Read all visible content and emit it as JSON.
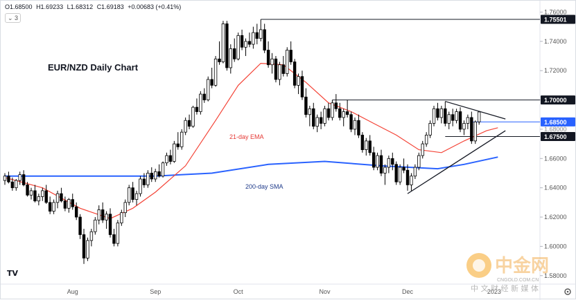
{
  "ohlc": {
    "open": "O1.68500",
    "high": "H1.69233",
    "low": "L1.68312",
    "close": "C1.69183",
    "change": "+0.00683 (+0.41%)"
  },
  "indicator_toggle": "⌄ 3",
  "logo_text": "TV",
  "watermark": {
    "brand": "中金网",
    "domain": "CNGOLD.COM.CN",
    "tagline": "中 文 财 经 新 媒 体"
  },
  "settings_icon": "gear-icon",
  "chart_data": {
    "type": "candlestick",
    "title": "EUR/NZD Daily Chart",
    "y_ticks": [
      "1.76000",
      "1.74000",
      "1.72000",
      "1.70000",
      "1.68000",
      "1.66000",
      "1.64000",
      "1.62000",
      "1.60000",
      "1.58000"
    ],
    "ylim": [
      1.578,
      1.764
    ],
    "x_labels": [
      {
        "label": "Aug",
        "index": 18
      },
      {
        "label": "Sep",
        "index": 40
      },
      {
        "label": "Oct",
        "index": 62
      },
      {
        "label": "Nov",
        "index": 85
      },
      {
        "label": "Dec",
        "index": 107
      },
      {
        "label": "2023",
        "index": 130
      }
    ],
    "price_tags": [
      {
        "label": "1.75501",
        "value": 1.75501,
        "style": "dark"
      },
      {
        "label": "1.70000",
        "value": 1.7,
        "style": "dark"
      },
      {
        "label": "1.68500",
        "value": 1.685,
        "style": "blue"
      },
      {
        "label": "1.68000",
        "value": 1.68,
        "style": "faint"
      },
      {
        "label": "1.67500",
        "value": 1.675,
        "style": "dark"
      }
    ],
    "annotations": [
      {
        "text": "21-day EMA",
        "color": "#e53935"
      },
      {
        "text": "200-day SMA",
        "color": "#1e3a8a"
      }
    ],
    "colors": {
      "up": "#ffffff",
      "down": "#000000",
      "ema": "#f44336",
      "sma": "#2962ff",
      "tag_blue": "#2962ff",
      "tag_dark": "#131722"
    },
    "candles": [
      [
        1.645,
        1.65,
        1.642,
        1.648
      ],
      [
        1.648,
        1.651,
        1.643,
        1.644
      ],
      [
        1.644,
        1.647,
        1.638,
        1.64
      ],
      [
        1.64,
        1.646,
        1.638,
        1.645
      ],
      [
        1.645,
        1.651,
        1.642,
        1.649
      ],
      [
        1.649,
        1.652,
        1.641,
        1.642
      ],
      [
        1.642,
        1.644,
        1.634,
        1.635
      ],
      [
        1.635,
        1.64,
        1.632,
        1.638
      ],
      [
        1.638,
        1.642,
        1.63,
        1.631
      ],
      [
        1.631,
        1.636,
        1.628,
        1.634
      ],
      [
        1.634,
        1.64,
        1.631,
        1.638
      ],
      [
        1.638,
        1.642,
        1.629,
        1.63
      ],
      [
        1.63,
        1.634,
        1.622,
        1.624
      ],
      [
        1.624,
        1.632,
        1.622,
        1.63
      ],
      [
        1.63,
        1.638,
        1.626,
        1.636
      ],
      [
        1.636,
        1.64,
        1.63,
        1.631
      ],
      [
        1.631,
        1.634,
        1.624,
        1.626
      ],
      [
        1.626,
        1.633,
        1.623,
        1.632
      ],
      [
        1.632,
        1.636,
        1.625,
        1.627
      ],
      [
        1.627,
        1.63,
        1.618,
        1.62
      ],
      [
        1.62,
        1.622,
        1.605,
        1.608
      ],
      [
        1.608,
        1.612,
        1.588,
        1.592
      ],
      [
        1.592,
        1.606,
        1.59,
        1.604
      ],
      [
        1.604,
        1.612,
        1.6,
        1.61
      ],
      [
        1.61,
        1.62,
        1.608,
        1.618
      ],
      [
        1.618,
        1.628,
        1.615,
        1.625
      ],
      [
        1.625,
        1.63,
        1.616,
        1.618
      ],
      [
        1.618,
        1.624,
        1.612,
        1.622
      ],
      [
        1.622,
        1.626,
        1.606,
        1.608
      ],
      [
        1.608,
        1.612,
        1.6,
        1.602
      ],
      [
        1.602,
        1.618,
        1.6,
        1.616
      ],
      [
        1.616,
        1.625,
        1.614,
        1.623
      ],
      [
        1.623,
        1.632,
        1.62,
        1.63
      ],
      [
        1.63,
        1.642,
        1.628,
        1.64
      ],
      [
        1.64,
        1.644,
        1.63,
        1.632
      ],
      [
        1.632,
        1.638,
        1.628,
        1.636
      ],
      [
        1.636,
        1.648,
        1.634,
        1.646
      ],
      [
        1.646,
        1.65,
        1.64,
        1.642
      ],
      [
        1.642,
        1.652,
        1.64,
        1.65
      ],
      [
        1.65,
        1.654,
        1.644,
        1.646
      ],
      [
        1.646,
        1.653,
        1.644,
        1.651
      ],
      [
        1.651,
        1.656,
        1.647,
        1.648
      ],
      [
        1.648,
        1.658,
        1.647,
        1.657
      ],
      [
        1.657,
        1.664,
        1.655,
        1.662
      ],
      [
        1.662,
        1.666,
        1.656,
        1.658
      ],
      [
        1.658,
        1.672,
        1.657,
        1.67
      ],
      [
        1.67,
        1.678,
        1.666,
        1.668
      ],
      [
        1.668,
        1.68,
        1.666,
        1.678
      ],
      [
        1.678,
        1.688,
        1.676,
        1.686
      ],
      [
        1.686,
        1.69,
        1.68,
        1.682
      ],
      [
        1.682,
        1.696,
        1.681,
        1.695
      ],
      [
        1.695,
        1.701,
        1.69,
        1.692
      ],
      [
        1.692,
        1.706,
        1.69,
        1.704
      ],
      [
        1.704,
        1.708,
        1.698,
        1.7
      ],
      [
        1.7,
        1.716,
        1.699,
        1.714
      ],
      [
        1.714,
        1.722,
        1.708,
        1.71
      ],
      [
        1.71,
        1.73,
        1.709,
        1.728
      ],
      [
        1.728,
        1.74,
        1.724,
        1.726
      ],
      [
        1.726,
        1.754,
        1.725,
        1.752
      ],
      [
        1.752,
        1.754,
        1.72,
        1.722
      ],
      [
        1.722,
        1.738,
        1.718,
        1.735
      ],
      [
        1.735,
        1.742,
        1.726,
        1.728
      ],
      [
        1.728,
        1.746,
        1.727,
        1.744
      ],
      [
        1.744,
        1.748,
        1.734,
        1.736
      ],
      [
        1.736,
        1.742,
        1.73,
        1.74
      ],
      [
        1.74,
        1.746,
        1.736,
        1.738
      ],
      [
        1.738,
        1.75,
        1.735,
        1.746
      ],
      [
        1.746,
        1.752,
        1.738,
        1.742
      ],
      [
        1.742,
        1.755,
        1.74,
        1.748
      ],
      [
        1.748,
        1.752,
        1.732,
        1.734
      ],
      [
        1.734,
        1.74,
        1.722,
        1.724
      ],
      [
        1.724,
        1.732,
        1.718,
        1.728
      ],
      [
        1.728,
        1.73,
        1.712,
        1.714
      ],
      [
        1.714,
        1.726,
        1.71,
        1.724
      ],
      [
        1.724,
        1.73,
        1.716,
        1.718
      ],
      [
        1.718,
        1.736,
        1.716,
        1.734
      ],
      [
        1.734,
        1.74,
        1.724,
        1.726
      ],
      [
        1.726,
        1.728,
        1.708,
        1.71
      ],
      [
        1.71,
        1.718,
        1.704,
        1.716
      ],
      [
        1.716,
        1.72,
        1.7,
        1.702
      ],
      [
        1.702,
        1.708,
        1.688,
        1.69
      ],
      [
        1.69,
        1.696,
        1.682,
        1.694
      ],
      [
        1.694,
        1.698,
        1.68,
        1.682
      ],
      [
        1.682,
        1.69,
        1.678,
        1.688
      ],
      [
        1.688,
        1.692,
        1.68,
        1.684
      ],
      [
        1.684,
        1.696,
        1.682,
        1.694
      ],
      [
        1.694,
        1.698,
        1.686,
        1.688
      ],
      [
        1.688,
        1.7,
        1.686,
        1.698
      ],
      [
        1.698,
        1.704,
        1.692,
        1.694
      ],
      [
        1.694,
        1.698,
        1.686,
        1.688
      ],
      [
        1.688,
        1.694,
        1.682,
        1.692
      ],
      [
        1.692,
        1.7,
        1.688,
        1.69
      ],
      [
        1.69,
        1.692,
        1.678,
        1.68
      ],
      [
        1.68,
        1.688,
        1.676,
        1.686
      ],
      [
        1.686,
        1.69,
        1.674,
        1.676
      ],
      [
        1.676,
        1.678,
        1.664,
        1.666
      ],
      [
        1.666,
        1.674,
        1.662,
        1.672
      ],
      [
        1.672,
        1.676,
        1.662,
        1.664
      ],
      [
        1.664,
        1.668,
        1.652,
        1.654
      ],
      [
        1.654,
        1.664,
        1.652,
        1.662
      ],
      [
        1.662,
        1.666,
        1.648,
        1.65
      ],
      [
        1.65,
        1.656,
        1.642,
        1.654
      ],
      [
        1.654,
        1.662,
        1.65,
        1.66
      ],
      [
        1.66,
        1.664,
        1.652,
        1.656
      ],
      [
        1.656,
        1.658,
        1.642,
        1.644
      ],
      [
        1.644,
        1.656,
        1.642,
        1.654
      ],
      [
        1.654,
        1.66,
        1.65,
        1.652
      ],
      [
        1.652,
        1.656,
        1.638,
        1.642
      ],
      [
        1.642,
        1.65,
        1.638,
        1.648
      ],
      [
        1.648,
        1.656,
        1.646,
        1.654
      ],
      [
        1.654,
        1.664,
        1.652,
        1.662
      ],
      [
        1.662,
        1.672,
        1.66,
        1.67
      ],
      [
        1.67,
        1.678,
        1.668,
        1.676
      ],
      [
        1.676,
        1.686,
        1.674,
        1.684
      ],
      [
        1.684,
        1.696,
        1.682,
        1.694
      ],
      [
        1.694,
        1.698,
        1.686,
        1.688
      ],
      [
        1.688,
        1.696,
        1.684,
        1.694
      ],
      [
        1.694,
        1.699,
        1.682,
        1.684
      ],
      [
        1.684,
        1.692,
        1.68,
        1.69
      ],
      [
        1.69,
        1.694,
        1.682,
        1.686
      ],
      [
        1.686,
        1.694,
        1.684,
        1.692
      ],
      [
        1.692,
        1.695,
        1.678,
        1.68
      ],
      [
        1.68,
        1.686,
        1.676,
        1.684
      ],
      [
        1.684,
        1.69,
        1.68,
        1.688
      ],
      [
        1.688,
        1.692,
        1.67,
        1.672
      ],
      [
        1.672,
        1.686,
        1.67,
        1.685
      ],
      [
        1.685,
        1.6923,
        1.6831,
        1.6918
      ]
    ],
    "ema21_anchors": [
      [
        0,
        1.647
      ],
      [
        10,
        1.64
      ],
      [
        20,
        1.626
      ],
      [
        28,
        1.619
      ],
      [
        34,
        1.626
      ],
      [
        40,
        1.637
      ],
      [
        48,
        1.655
      ],
      [
        56,
        1.686
      ],
      [
        62,
        1.71
      ],
      [
        68,
        1.725
      ],
      [
        74,
        1.724
      ],
      [
        80,
        1.712
      ],
      [
        86,
        1.698
      ],
      [
        92,
        1.692
      ],
      [
        98,
        1.684
      ],
      [
        104,
        1.676
      ],
      [
        110,
        1.666
      ],
      [
        116,
        1.664
      ],
      [
        122,
        1.672
      ],
      [
        128,
        1.679
      ],
      [
        131,
        1.681
      ]
    ],
    "sma200_anchors": [
      [
        0,
        1.648
      ],
      [
        20,
        1.648
      ],
      [
        40,
        1.648
      ],
      [
        55,
        1.65
      ],
      [
        70,
        1.656
      ],
      [
        85,
        1.658
      ],
      [
        100,
        1.655
      ],
      [
        115,
        1.653
      ],
      [
        122,
        1.656
      ],
      [
        131,
        1.661
      ]
    ],
    "support_trendline": [
      [
        107,
        1.636
      ],
      [
        133,
        1.679
      ]
    ],
    "resistance_trendline": [
      [
        117,
        1.699
      ],
      [
        133,
        1.687
      ]
    ],
    "horizontal_levels": [
      {
        "value": 1.75501,
        "from_index": 68
      },
      {
        "value": 1.7,
        "from_index": 87
      },
      {
        "value": 1.675,
        "from_index": 117
      }
    ]
  }
}
